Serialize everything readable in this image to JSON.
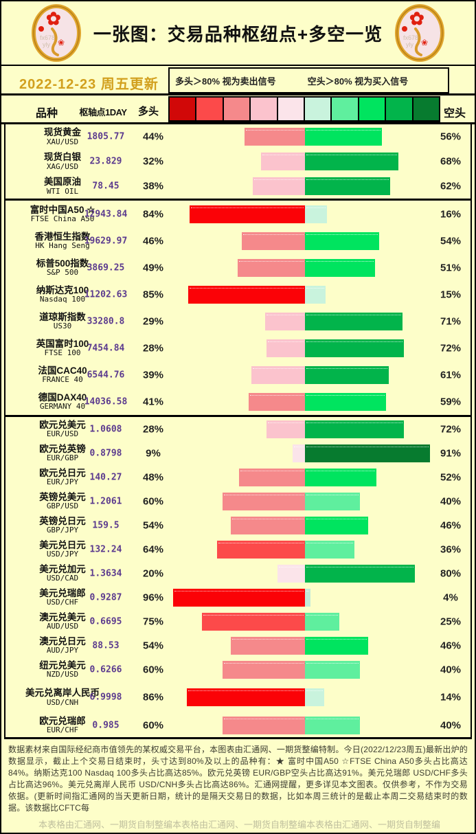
{
  "header": {
    "title": "一张图：交易品种枢纽点+多空一览",
    "date": "2022-12-23 周五更新"
  },
  "legend": {
    "long_signal": "多头＞80% 视为卖出信号",
    "short_signal": "空头＞80% 视为买入信号"
  },
  "columns": {
    "instrument": "品种",
    "pivot": "枢轴点1DAY",
    "long": "多头",
    "short": "空头"
  },
  "scale_colors": [
    "#D10808",
    "#FC4A4A",
    "#F5898B",
    "#FBC3CD",
    "#FBE4EA",
    "#C9F3DD",
    "#5FEF9E",
    "#00E45F",
    "#02B44B",
    "#077B2F"
  ],
  "table": {
    "groups": [
      {
        "name": "commodities",
        "rows": [
          {
            "name_zh": "现货黄金",
            "name_en": "XAU/USD",
            "pivot": "1805.77",
            "long_pct": 44,
            "short_pct": 56,
            "long_color": "#F5898B",
            "short_color": "#00E45F"
          },
          {
            "name_zh": "现货白银",
            "name_en": "XAG/USD",
            "pivot": "23.829",
            "long_pct": 32,
            "short_pct": 68,
            "long_color": "#FBC3CD",
            "short_color": "#02B44B"
          },
          {
            "name_zh": "美国原油",
            "name_en": "WTI OIL",
            "pivot": "78.45",
            "long_pct": 38,
            "short_pct": 62,
            "long_color": "#FBC3CD",
            "short_color": "#02B44B"
          }
        ]
      },
      {
        "name": "indices",
        "rows": [
          {
            "name_zh": "富时中国A50 ☆",
            "name_en": "FTSE China A50",
            "pivot": "12943.84",
            "long_pct": 84,
            "short_pct": 16,
            "long_color": "#FB0207",
            "short_color": "#C9F3DD"
          },
          {
            "name_zh": "香港恒生指数",
            "name_en": "HK Hang Seng",
            "pivot": "19629.97",
            "long_pct": 46,
            "short_pct": 54,
            "long_color": "#F5898B",
            "short_color": "#00E45F"
          },
          {
            "name_zh": "标普500指数",
            "name_en": "S&P 500",
            "pivot": "3869.25",
            "long_pct": 49,
            "short_pct": 51,
            "long_color": "#F5898B",
            "short_color": "#00E45F"
          },
          {
            "name_zh": "纳斯达克100",
            "name_en": "Nasdaq 100",
            "pivot": "11202.63",
            "long_pct": 85,
            "short_pct": 15,
            "long_color": "#FB0207",
            "short_color": "#C9F3DD"
          },
          {
            "name_zh": "道琼斯指数",
            "name_en": "US30",
            "pivot": "33280.8",
            "long_pct": 29,
            "short_pct": 71,
            "long_color": "#FBC3CD",
            "short_color": "#02B44B"
          },
          {
            "name_zh": "英国富时100",
            "name_en": "FTSE 100",
            "pivot": "7454.84",
            "long_pct": 28,
            "short_pct": 72,
            "long_color": "#FBC3CD",
            "short_color": "#02B44B"
          },
          {
            "name_zh": "法国CAC40",
            "name_en": "FRANCE 40",
            "pivot": "6544.76",
            "long_pct": 39,
            "short_pct": 61,
            "long_color": "#FBC3CD",
            "short_color": "#02B44B"
          },
          {
            "name_zh": "德国DAX40",
            "name_en": "GERMANY 40",
            "pivot": "14036.58",
            "long_pct": 41,
            "short_pct": 59,
            "long_color": "#F5898B",
            "short_color": "#00E45F"
          }
        ]
      },
      {
        "name": "forex",
        "rows": [
          {
            "name_zh": "欧元兑美元",
            "name_en": "EUR/USD",
            "pivot": "1.0608",
            "long_pct": 28,
            "short_pct": 72,
            "long_color": "#FBC3CD",
            "short_color": "#02B44B"
          },
          {
            "name_zh": "欧元兑英镑",
            "name_en": "EUR/GBP",
            "pivot": "0.8798",
            "long_pct": 9,
            "short_pct": 91,
            "long_color": "#FBE4EA",
            "short_color": "#077B2F"
          },
          {
            "name_zh": "欧元兑日元",
            "name_en": "EUR/JPY",
            "pivot": "140.27",
            "long_pct": 48,
            "short_pct": 52,
            "long_color": "#F5898B",
            "short_color": "#00E45F"
          },
          {
            "name_zh": "英镑兑美元",
            "name_en": "GBP/USD",
            "pivot": "1.2061",
            "long_pct": 60,
            "short_pct": 40,
            "long_color": "#F5898B",
            "short_color": "#5FEF9E"
          },
          {
            "name_zh": "英镑兑日元",
            "name_en": "GBP/JPY",
            "pivot": "159.5",
            "long_pct": 54,
            "short_pct": 46,
            "long_color": "#F5898B",
            "short_color": "#00E45F"
          },
          {
            "name_zh": "美元兑日元",
            "name_en": "USD/JPY",
            "pivot": "132.24",
            "long_pct": 64,
            "short_pct": 36,
            "long_color": "#FC4A4A",
            "short_color": "#5FEF9E"
          },
          {
            "name_zh": "美元兑加元",
            "name_en": "USD/CAD",
            "pivot": "1.3634",
            "long_pct": 20,
            "short_pct": 80,
            "long_color": "#FBE4EA",
            "short_color": "#02B44B"
          },
          {
            "name_zh": "美元兑瑞郎",
            "name_en": "USD/CHF",
            "pivot": "0.9287",
            "long_pct": 96,
            "short_pct": 4,
            "long_color": "#FB0207",
            "short_color": "#C2EAD8"
          },
          {
            "name_zh": "澳元兑美元",
            "name_en": "AUD/USD",
            "pivot": "0.6695",
            "long_pct": 75,
            "short_pct": 25,
            "long_color": "#FC4A4A",
            "short_color": "#5FEF9E"
          },
          {
            "name_zh": "澳元兑日元",
            "name_en": "AUD/JPY",
            "pivot": "88.53",
            "long_pct": 54,
            "short_pct": 46,
            "long_color": "#F5898B",
            "short_color": "#00E45F"
          },
          {
            "name_zh": "纽元兑美元",
            "name_en": "NZD/USD",
            "pivot": "0.6266",
            "long_pct": 60,
            "short_pct": 40,
            "long_color": "#F5898B",
            "short_color": "#5FEF9E"
          },
          {
            "name_zh": "美元兑离岸人民币",
            "name_en": "USD/CNH",
            "pivot": "6.9998",
            "long_pct": 86,
            "short_pct": 14,
            "long_color": "#FB0207",
            "short_color": "#C9F3DD",
            "tall": true
          },
          {
            "name_zh": "欧元兑瑞郎",
            "name_en": "EUR/CHF",
            "pivot": "0.985",
            "long_pct": 60,
            "short_pct": 40,
            "long_color": "#F5898B",
            "short_color": "#5FEF9E"
          }
        ]
      }
    ]
  },
  "chart_data": {
    "type": "bar",
    "subtype": "horizontal diverging stacked bars, centered; long extends left, short extends right",
    "title": "一张图：交易品种枢纽点+多空一览",
    "legend_entries": [
      "多头＞80% 视为卖出信号",
      "空头＞80% 视为买入信号"
    ],
    "categories": [
      "现货黄金 XAU/USD",
      "现货白银 XAG/USD",
      "美国原油 WTI OIL",
      "富时中国A50 ☆ FTSE China A50",
      "香港恒生指数 HK Hang Seng",
      "标普500指数 S&P 500",
      "纳斯达克100 Nasdaq 100",
      "道琼斯指数 US30",
      "英国富时100 FTSE 100",
      "法国CAC40 FRANCE 40",
      "德国DAX40 GERMANY 40",
      "欧元兑美元 EUR/USD",
      "欧元兑英镑 EUR/GBP",
      "欧元兑日元 EUR/JPY",
      "英镑兑美元 GBP/USD",
      "英镑兑日元 GBP/JPY",
      "美元兑日元 USD/JPY",
      "美元兑加元 USD/CAD",
      "美元兑瑞郎 USD/CHF",
      "澳元兑美元 AUD/USD",
      "澳元兑日元 AUD/JPY",
      "纽元兑美元 NZD/USD",
      "美元兑离岸人民币 USD/CNH",
      "欧元兑瑞郎 EUR/CHF"
    ],
    "series": [
      {
        "name": "多头 (%)",
        "values": [
          44,
          32,
          38,
          84,
          46,
          49,
          85,
          29,
          28,
          39,
          41,
          28,
          9,
          48,
          60,
          54,
          64,
          20,
          96,
          75,
          54,
          60,
          86,
          60
        ]
      },
      {
        "name": "空头 (%)",
        "values": [
          56,
          68,
          62,
          16,
          54,
          51,
          15,
          71,
          72,
          61,
          59,
          72,
          91,
          52,
          40,
          46,
          36,
          80,
          4,
          25,
          46,
          40,
          14,
          40
        ]
      }
    ],
    "pivot_1day": [
      1805.77,
      23.829,
      78.45,
      12943.84,
      19629.97,
      3869.25,
      11202.63,
      33280.8,
      7454.84,
      6544.76,
      14036.58,
      1.0608,
      0.8798,
      140.27,
      1.2061,
      159.5,
      132.24,
      1.3634,
      0.9287,
      0.6695,
      88.53,
      0.6266,
      6.9998,
      0.985
    ],
    "xlim": [
      0,
      100
    ],
    "color_scale": [
      "#D10808",
      "#FC4A4A",
      "#F5898B",
      "#FBC3CD",
      "#FBE4EA",
      "#C9F3DD",
      "#5FEF9E",
      "#00E45F",
      "#02B44B",
      "#077B2F"
    ],
    "grid": false
  },
  "footer": {
    "note": "数据素材来自国际经纪商市值领先的某权威交易平台，本图表由汇通网、一期货整编特制。今日(2022/12/23周五)最新出炉的数据显示，截止上个交易日结束时，头寸达到80%及以上的品种有：★ 富时中国A50 ☆FTSE China A50多头占比高达84%。纳斯达克100 Nasdaq 100多头占比高达85%。欧元兑英镑 EUR/GBP空头占比高达91%。美元兑瑞郎 USD/CHF多头占比高达96%。美元兑离岸人民币 USD/CNH多头占比高达86%。汇通网提醒，更多详见本文图表。仅供参考，不作为交易依据。(更新时间指汇通网的当天更新日期，统计的是隔天交易日的数据，比如本周三统计的是截止本周二交易结束时的数据。该数据比CFTC每",
    "credits": [
      "本表格由汇通网、一期货自制整编",
      "本表格由汇通网、一期货自制整编",
      "本表格由汇通网、一期货自制整编"
    ]
  }
}
